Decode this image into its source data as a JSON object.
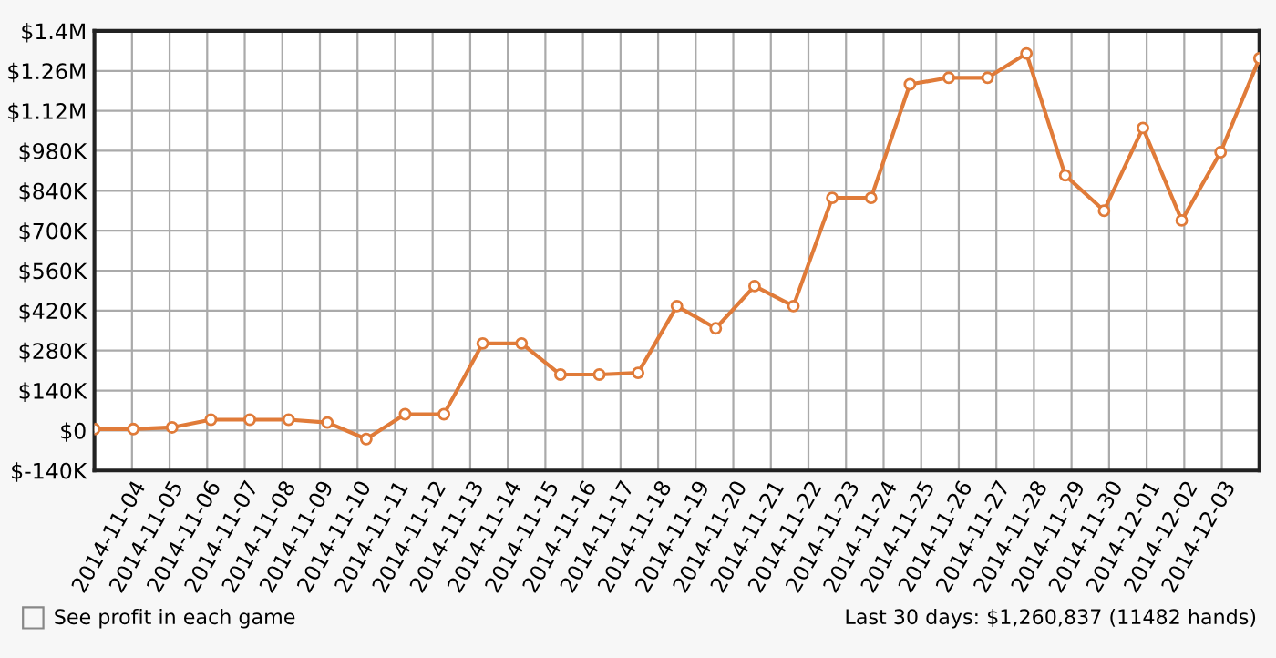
{
  "chart_data": {
    "type": "line",
    "x": [
      "2014-11-03T00:00",
      "2014-11-04T00:48",
      "2014-11-05T01:36",
      "2014-11-06T02:24",
      "2014-11-07T03:12",
      "2014-11-08T04:00",
      "2014-11-09T04:48",
      "2014-11-10T05:36",
      "2014-11-11T06:24",
      "2014-11-12T07:12",
      "2014-11-13T08:00",
      "2014-11-14T08:48",
      "2014-11-15T09:36",
      "2014-11-16T10:24",
      "2014-11-17T11:12",
      "2014-11-18T12:00",
      "2014-11-19T12:48",
      "2014-11-20T13:36",
      "2014-11-21T14:24",
      "2014-11-22T15:12",
      "2014-11-23T16:00",
      "2014-11-24T16:48",
      "2014-11-25T17:36",
      "2014-11-26T18:24",
      "2014-11-27T19:12",
      "2014-11-28T20:00",
      "2014-11-29T20:48",
      "2014-11-30T21:36",
      "2014-12-01T22:24",
      "2014-12-02T23:12",
      "2014-12-04T00:00"
    ],
    "series": [
      {
        "color": "#e07b39",
        "values": [
          5000,
          5000,
          11000,
          38000,
          38000,
          38000,
          28000,
          -30000,
          57000,
          57000,
          305000,
          305000,
          196000,
          196000,
          202000,
          436000,
          358000,
          506000,
          436000,
          815000,
          815000,
          1213000,
          1236000,
          1236000,
          1321000,
          894000,
          770000,
          1060000,
          736000,
          975000,
          1304000
        ]
      }
    ],
    "xlim": [
      "2014-11-03",
      "2014-12-04"
    ],
    "xticks": [
      {
        "value": "2014-11-04",
        "label": "2014-11-04"
      },
      {
        "value": "2014-11-05",
        "label": "2014-11-05"
      },
      {
        "value": "2014-11-06",
        "label": "2014-11-06"
      },
      {
        "value": "2014-11-07",
        "label": "2014-11-07"
      },
      {
        "value": "2014-11-08",
        "label": "2014-11-08"
      },
      {
        "value": "2014-11-09",
        "label": "2014-11-09"
      },
      {
        "value": "2014-11-10",
        "label": "2014-11-10"
      },
      {
        "value": "2014-11-11",
        "label": "2014-11-11"
      },
      {
        "value": "2014-11-12",
        "label": "2014-11-12"
      },
      {
        "value": "2014-11-13",
        "label": "2014-11-13"
      },
      {
        "value": "2014-11-14",
        "label": "2014-11-14"
      },
      {
        "value": "2014-11-15",
        "label": "2014-11-15"
      },
      {
        "value": "2014-11-16",
        "label": "2014-11-16"
      },
      {
        "value": "2014-11-17",
        "label": "2014-11-17"
      },
      {
        "value": "2014-11-18",
        "label": "2014-11-18"
      },
      {
        "value": "2014-11-19",
        "label": "2014-11-19"
      },
      {
        "value": "2014-11-20",
        "label": "2014-11-20"
      },
      {
        "value": "2014-11-21",
        "label": "2014-11-21"
      },
      {
        "value": "2014-11-22",
        "label": "2014-11-22"
      },
      {
        "value": "2014-11-23",
        "label": "2014-11-23"
      },
      {
        "value": "2014-11-24",
        "label": "2014-11-24"
      },
      {
        "value": "2014-11-25",
        "label": "2014-11-25"
      },
      {
        "value": "2014-11-26",
        "label": "2014-11-26"
      },
      {
        "value": "2014-11-27",
        "label": "2014-11-27"
      },
      {
        "value": "2014-11-28",
        "label": "2014-11-28"
      },
      {
        "value": "2014-11-29",
        "label": "2014-11-29"
      },
      {
        "value": "2014-11-30",
        "label": "2014-11-30"
      },
      {
        "value": "2014-12-01",
        "label": "2014-12-01"
      },
      {
        "value": "2014-12-02",
        "label": "2014-12-02"
      },
      {
        "value": "2014-12-03",
        "label": "2014-12-03"
      }
    ],
    "ylim": [
      -140000,
      1400000
    ],
    "yticks": [
      {
        "value": -140000,
        "label": "$-140K"
      },
      {
        "value": 0,
        "label": "$0"
      },
      {
        "value": 140000,
        "label": "$140K"
      },
      {
        "value": 280000,
        "label": "$280K"
      },
      {
        "value": 420000,
        "label": "$420K"
      },
      {
        "value": 560000,
        "label": "$560K"
      },
      {
        "value": 700000,
        "label": "$700K"
      },
      {
        "value": 840000,
        "label": "$840K"
      },
      {
        "value": 980000,
        "label": "$980K"
      },
      {
        "value": 1120000,
        "label": "$1.12M"
      },
      {
        "value": 1260000,
        "label": "$1.26M"
      },
      {
        "value": 1400000,
        "label": "$1.4M"
      }
    ],
    "grid": true,
    "marker": "circle",
    "line_style": "solid",
    "annotations": [
      "See profit in each game",
      "Last 30 days: $1,260,837 (11482 hands)"
    ]
  }
}
